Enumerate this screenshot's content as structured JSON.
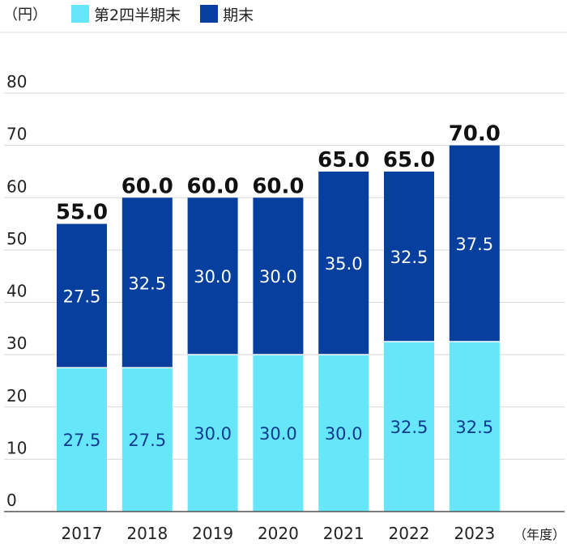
{
  "colors": {
    "q2": "#67e6fa",
    "year_end": "#063f9d",
    "grid": "#d8d8d8",
    "axis": "#555555",
    "text": "#222222",
    "label_light": "#ffffff",
    "label_dark": "#0b3b8f"
  },
  "legend": {
    "unit": "（円）",
    "items": [
      {
        "label": "第2四半期末",
        "color_key": "q2"
      },
      {
        "label": "期末",
        "color_key": "year_end"
      }
    ]
  },
  "x_unit": "（年度）",
  "chart_data": {
    "type": "bar",
    "stacked": true,
    "categories": [
      "2017",
      "2018",
      "2019",
      "2020",
      "2021",
      "2022",
      "2023"
    ],
    "series": [
      {
        "name": "第2四半期末",
        "values": [
          27.5,
          27.5,
          30.0,
          30.0,
          30.0,
          32.5,
          32.5
        ]
      },
      {
        "name": "期末",
        "values": [
          27.5,
          32.5,
          30.0,
          30.0,
          35.0,
          32.5,
          37.5
        ]
      }
    ],
    "totals": [
      55.0,
      60.0,
      60.0,
      60.0,
      65.0,
      65.0,
      70.0
    ],
    "ylim": [
      0,
      80
    ],
    "yticks": [
      0,
      10,
      20,
      30,
      40,
      50,
      60,
      70,
      80
    ],
    "grid": true,
    "legend_position": "top-left"
  }
}
